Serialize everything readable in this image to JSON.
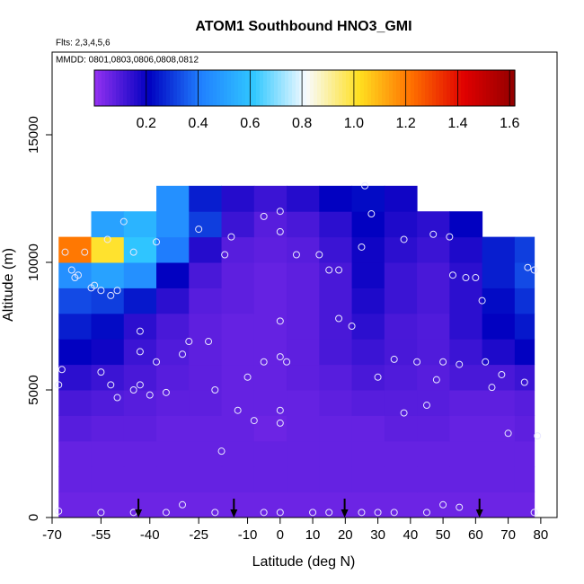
{
  "chart_data": {
    "type": "heatmap",
    "title": "ATOM1 Southbound HNO3_GMI",
    "subtitle": "Flts: 2,3,4,5,6",
    "annotation": "MMDD: 0801,0803,0806,0808,0812",
    "x_label": "Latitude (deg N)",
    "y_label": "Altitude (m)",
    "xlim": [
      -70,
      85
    ],
    "ylim": [
      0,
      18240
    ],
    "xticks": [
      -70,
      -55,
      -40,
      -25,
      -10,
      0,
      10,
      20,
      30,
      40,
      50,
      60,
      70,
      80
    ],
    "yticks": [
      0,
      5000,
      10000,
      15000
    ],
    "clim": [
      0,
      1.62
    ],
    "cticks": [
      0.2,
      0.4,
      0.6,
      0.8,
      {
        "value": 1.0,
        "label": "1.0"
      },
      1.2,
      1.4,
      1.6
    ],
    "colormap": [
      "#9030f0",
      "#0000c0",
      "#2080ff",
      "#30c8ff",
      "#f8fbff",
      "#ffe020",
      "#ff7000",
      "#e00000",
      "#900000"
    ],
    "x_edges": [
      -68,
      -58,
      -48,
      -38,
      -28,
      -18,
      -8,
      2,
      12,
      22,
      32,
      42,
      52,
      62,
      72,
      78
    ],
    "y_edges": [
      0,
      1000,
      2000,
      3000,
      4000,
      5000,
      6000,
      7000,
      8000,
      9000,
      10000,
      11000,
      12000,
      13000
    ],
    "z": [
      [
        0.05,
        0.05,
        0.05,
        0.05,
        0.05,
        0.05,
        0.05,
        0.05,
        0.05,
        0.05,
        0.05,
        0.05,
        0.05,
        0.05,
        0.05
      ],
      [
        0.06,
        0.06,
        0.06,
        0.06,
        0.06,
        0.06,
        0.06,
        0.06,
        0.06,
        0.06,
        0.06,
        0.06,
        0.06,
        0.06,
        0.06
      ],
      [
        0.06,
        0.06,
        0.06,
        0.06,
        0.06,
        0.06,
        0.06,
        0.06,
        0.06,
        0.06,
        0.06,
        0.06,
        0.06,
        0.06,
        0.06
      ],
      [
        0.08,
        0.07,
        0.07,
        0.06,
        0.06,
        0.06,
        0.05,
        0.06,
        0.06,
        0.06,
        0.07,
        0.07,
        0.06,
        0.06,
        0.07
      ],
      [
        0.1,
        0.09,
        0.08,
        0.07,
        0.07,
        0.06,
        0.06,
        0.06,
        0.07,
        0.08,
        0.08,
        0.08,
        0.07,
        0.07,
        0.08
      ],
      [
        0.14,
        0.12,
        0.1,
        0.08,
        0.07,
        0.06,
        0.06,
        0.07,
        0.08,
        0.1,
        0.09,
        0.08,
        0.1,
        0.1,
        0.12
      ],
      [
        0.2,
        0.18,
        0.12,
        0.09,
        0.07,
        0.06,
        0.06,
        0.07,
        0.1,
        0.12,
        0.1,
        0.09,
        0.12,
        0.16,
        0.2
      ],
      [
        0.25,
        0.22,
        0.14,
        0.1,
        0.07,
        0.06,
        0.06,
        0.07,
        0.1,
        0.14,
        0.1,
        0.09,
        0.14,
        0.2,
        0.24
      ],
      [
        0.32,
        0.3,
        0.24,
        0.14,
        0.08,
        0.07,
        0.06,
        0.07,
        0.1,
        0.16,
        0.12,
        0.1,
        0.14,
        0.22,
        0.28
      ],
      [
        0.45,
        0.5,
        0.45,
        0.2,
        0.1,
        0.07,
        0.06,
        0.07,
        0.1,
        0.18,
        0.12,
        0.1,
        0.14,
        0.25,
        0.32
      ],
      [
        1.2,
        1.0,
        0.6,
        0.4,
        0.15,
        0.08,
        0.07,
        0.08,
        0.12,
        0.18,
        0.14,
        0.12,
        0.16,
        0.25,
        0.3
      ],
      [
        null,
        0.5,
        0.55,
        0.45,
        0.3,
        0.12,
        0.08,
        0.1,
        0.14,
        0.2,
        0.16,
        0.14,
        0.2,
        null,
        null
      ],
      [
        null,
        null,
        null,
        0.45,
        0.25,
        0.15,
        0.12,
        0.15,
        0.2,
        0.22,
        0.18,
        null,
        null,
        null,
        null
      ]
    ],
    "points_x": [
      -68,
      -67,
      -68,
      -66,
      -64,
      -63,
      -62,
      -58,
      -57,
      -55,
      -52,
      -50,
      -55,
      -52,
      -50,
      -45,
      -40,
      -43,
      -43,
      -43,
      -38,
      -35,
      -30,
      -28,
      -22,
      -20,
      -13,
      -10,
      -8,
      -5,
      0,
      2,
      0,
      0,
      0,
      -18,
      -15,
      -5,
      0,
      0,
      5,
      12,
      15,
      18,
      18,
      22,
      28,
      25,
      26,
      30,
      35,
      38,
      42,
      45,
      48,
      50,
      55,
      57,
      60,
      62,
      63,
      65,
      68,
      70,
      75,
      79,
      76,
      78,
      53,
      47,
      38,
      52,
      -55,
      -45,
      -35,
      -20,
      -5,
      0,
      10,
      15,
      25,
      30,
      35,
      45,
      50,
      55,
      -30,
      78,
      -25,
      -17,
      -45,
      -38,
      -48,
      -53,
      -60
    ],
    "points_y": [
      250,
      5800,
      5200,
      10400,
      9700,
      9400,
      9500,
      9000,
      9100,
      8900,
      8700,
      8900,
      5700,
      5200,
      4700,
      5000,
      4800,
      5200,
      6500,
      7300,
      6100,
      4900,
      6400,
      6900,
      6900,
      5000,
      4200,
      5500,
      3800,
      6100,
      6300,
      6100,
      7700,
      4200,
      3700,
      2600,
      11000,
      11800,
      12000,
      11200,
      10300,
      10300,
      9700,
      9700,
      7800,
      7500,
      11900,
      10600,
      13000,
      5500,
      6200,
      4100,
      6100,
      4400,
      5400,
      6100,
      6000,
      9400,
      9400,
      8500,
      6100,
      5100,
      5600,
      3300,
      5300,
      3200,
      9800,
      9700,
      9500,
      11100,
      10900,
      11000,
      200,
      200,
      200,
      200,
      200,
      200,
      200,
      200,
      200,
      200,
      200,
      200,
      500,
      400,
      500,
      200,
      11300,
      10300,
      10400,
      10800,
      11600,
      10900,
      10400
    ],
    "arrows_x": [
      -43.5,
      -14.2,
      19.8,
      61.2
    ]
  }
}
